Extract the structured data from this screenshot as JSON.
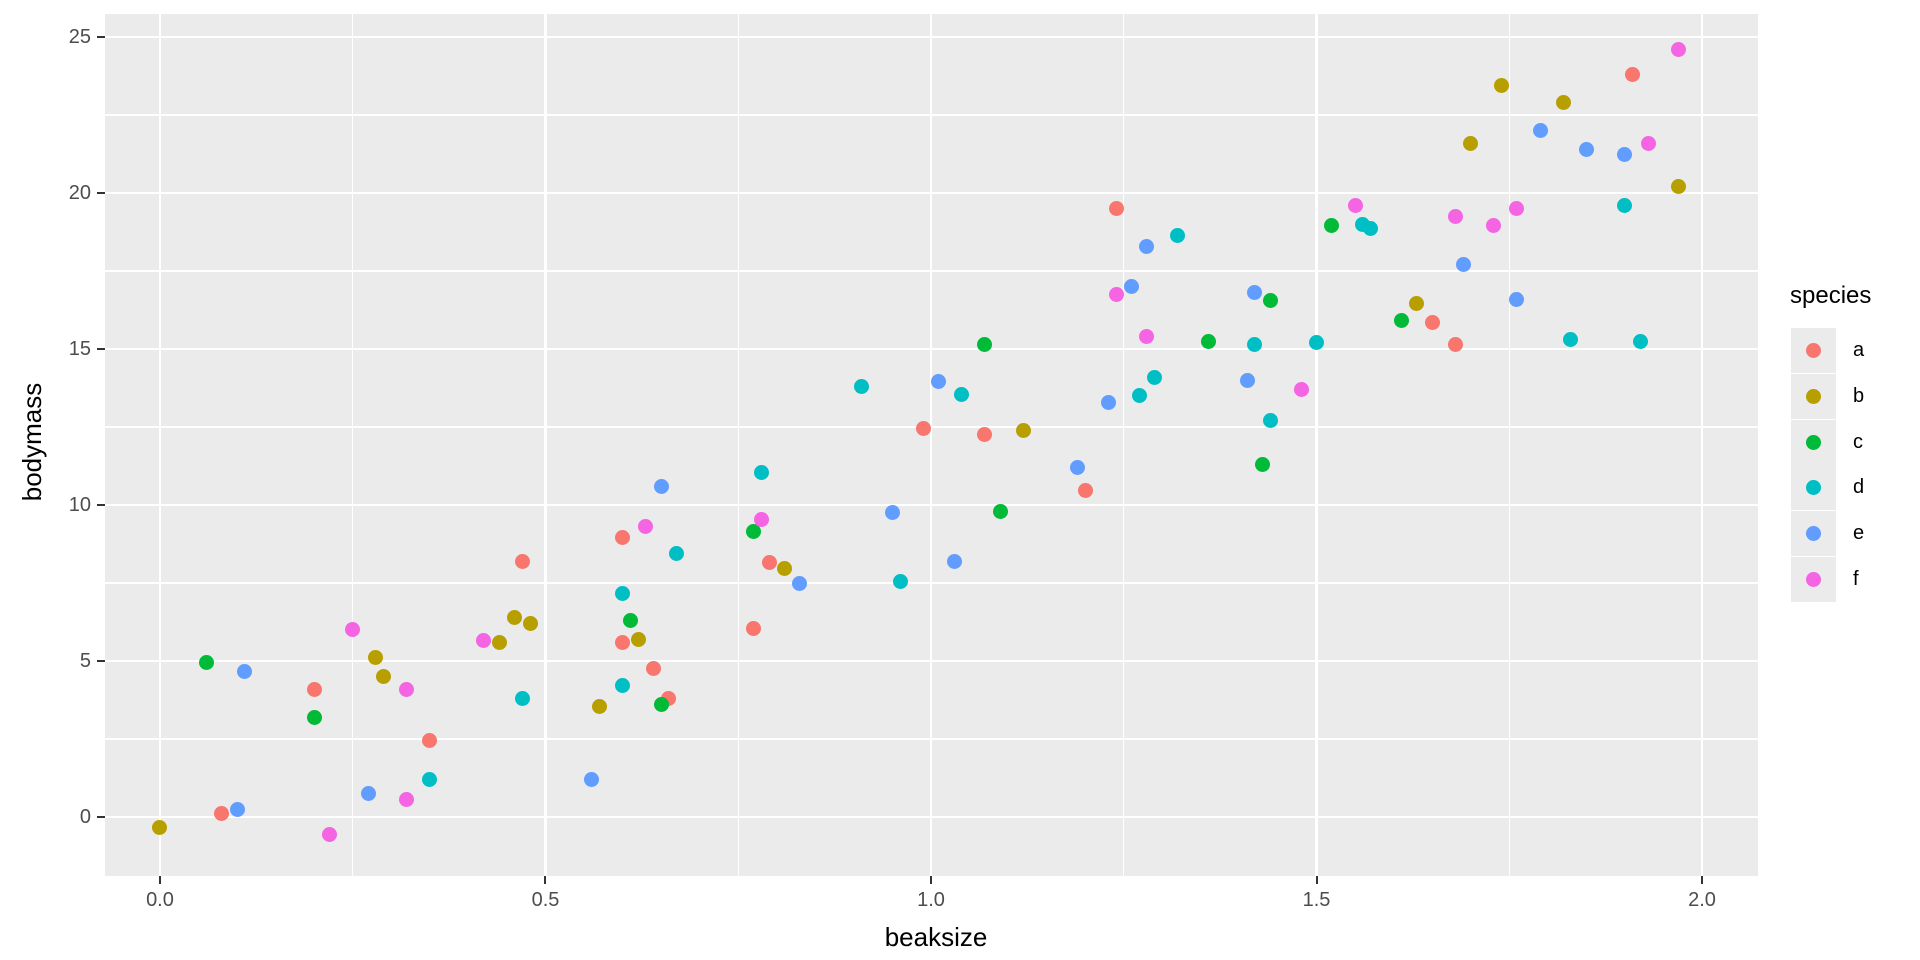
{
  "chart_data": {
    "type": "scatter",
    "title": "",
    "xlabel": "beaksize",
    "ylabel": "bodymass",
    "legend_title": "species",
    "legend_position": "right",
    "grid": true,
    "panel_bg": "#EBEBEB",
    "grid_color": "#FFFFFF",
    "xlim": [
      -0.0713,
      2.0726
    ],
    "ylim": [
      -1.89,
      25.737
    ],
    "x_ticks": {
      "values": [
        0,
        0.5,
        1.0,
        1.5,
        2.0
      ],
      "labels": [
        "0.0",
        "0.5",
        "1.0",
        "1.5",
        "2.0"
      ]
    },
    "y_ticks": {
      "values": [
        0,
        5,
        10,
        15,
        20,
        25
      ],
      "labels": [
        "0",
        "5",
        "10",
        "15",
        "20",
        "25"
      ]
    },
    "x_minor": [
      0.25,
      0.75,
      1.25,
      1.75
    ],
    "y_minor": [
      2.5,
      7.5,
      12.5,
      17.5,
      22.5
    ],
    "series": [
      {
        "name": "a",
        "color": "#F8766D",
        "points": [
          [
            0.08,
            0.1
          ],
          [
            0.2,
            4.1
          ],
          [
            0.35,
            2.45
          ],
          [
            0.47,
            8.2
          ],
          [
            0.6,
            8.95
          ],
          [
            0.6,
            5.6
          ],
          [
            0.64,
            4.75
          ],
          [
            0.66,
            3.8
          ],
          [
            0.77,
            6.05
          ],
          [
            0.79,
            8.15
          ],
          [
            0.99,
            12.45
          ],
          [
            1.07,
            12.25
          ],
          [
            1.2,
            10.45
          ],
          [
            1.24,
            19.5
          ],
          [
            1.65,
            15.85
          ],
          [
            1.68,
            15.15
          ],
          [
            1.91,
            23.8
          ]
        ]
      },
      {
        "name": "b",
        "color": "#B79F00",
        "points": [
          [
            0.0,
            -0.35
          ],
          [
            0.28,
            5.1
          ],
          [
            0.29,
            4.5
          ],
          [
            0.44,
            5.6
          ],
          [
            0.46,
            6.4
          ],
          [
            0.48,
            6.2
          ],
          [
            0.57,
            3.55
          ],
          [
            0.62,
            5.7
          ],
          [
            0.81,
            7.95
          ],
          [
            1.12,
            12.4
          ],
          [
            1.63,
            16.45
          ],
          [
            1.7,
            21.6
          ],
          [
            1.74,
            23.45
          ],
          [
            1.82,
            22.9
          ],
          [
            1.97,
            20.2
          ]
        ]
      },
      {
        "name": "c",
        "color": "#00BA38",
        "points": [
          [
            0.06,
            4.95
          ],
          [
            0.2,
            3.2
          ],
          [
            0.61,
            6.3
          ],
          [
            0.65,
            3.6
          ],
          [
            0.77,
            9.15
          ],
          [
            1.07,
            15.15
          ],
          [
            1.09,
            9.8
          ],
          [
            1.36,
            15.25
          ],
          [
            1.43,
            11.3
          ],
          [
            1.44,
            16.55
          ],
          [
            1.52,
            18.95
          ],
          [
            1.61,
            15.9
          ]
        ]
      },
      {
        "name": "d",
        "color": "#00BFC4",
        "points": [
          [
            0.35,
            1.2
          ],
          [
            0.47,
            3.8
          ],
          [
            0.6,
            7.15
          ],
          [
            0.6,
            4.2
          ],
          [
            0.67,
            8.45
          ],
          [
            0.78,
            11.05
          ],
          [
            0.91,
            13.8
          ],
          [
            0.96,
            7.55
          ],
          [
            1.04,
            13.55
          ],
          [
            1.27,
            13.5
          ],
          [
            1.29,
            14.1
          ],
          [
            1.32,
            18.65
          ],
          [
            1.42,
            15.15
          ],
          [
            1.44,
            12.7
          ],
          [
            1.5,
            15.2
          ],
          [
            1.56,
            19.0
          ],
          [
            1.57,
            18.85
          ],
          [
            1.83,
            15.3
          ],
          [
            1.9,
            19.6
          ],
          [
            1.92,
            15.25
          ]
        ]
      },
      {
        "name": "e",
        "color": "#619CFF",
        "points": [
          [
            0.1,
            0.25
          ],
          [
            0.11,
            4.65
          ],
          [
            0.27,
            0.75
          ],
          [
            0.56,
            1.2
          ],
          [
            0.65,
            10.6
          ],
          [
            0.83,
            7.5
          ],
          [
            0.95,
            9.75
          ],
          [
            1.01,
            13.95
          ],
          [
            1.03,
            8.2
          ],
          [
            1.19,
            11.2
          ],
          [
            1.23,
            13.3
          ],
          [
            1.26,
            17.0
          ],
          [
            1.28,
            18.3
          ],
          [
            1.41,
            14.0
          ],
          [
            1.42,
            16.8
          ],
          [
            1.69,
            17.7
          ],
          [
            1.76,
            16.6
          ],
          [
            1.79,
            22.0
          ],
          [
            1.85,
            21.4
          ],
          [
            1.9,
            21.25
          ]
        ]
      },
      {
        "name": "f",
        "color": "#F564E3",
        "points": [
          [
            0.22,
            -0.55
          ],
          [
            0.25,
            6.0
          ],
          [
            0.32,
            4.1
          ],
          [
            0.32,
            0.55
          ],
          [
            0.42,
            5.65
          ],
          [
            0.63,
            9.3
          ],
          [
            0.78,
            9.55
          ],
          [
            1.24,
            16.75
          ],
          [
            1.28,
            15.4
          ],
          [
            1.48,
            13.7
          ],
          [
            1.55,
            19.6
          ],
          [
            1.68,
            19.25
          ],
          [
            1.73,
            18.95
          ],
          [
            1.76,
            19.5
          ],
          [
            1.93,
            21.6
          ],
          [
            1.97,
            24.6
          ]
        ]
      }
    ]
  }
}
